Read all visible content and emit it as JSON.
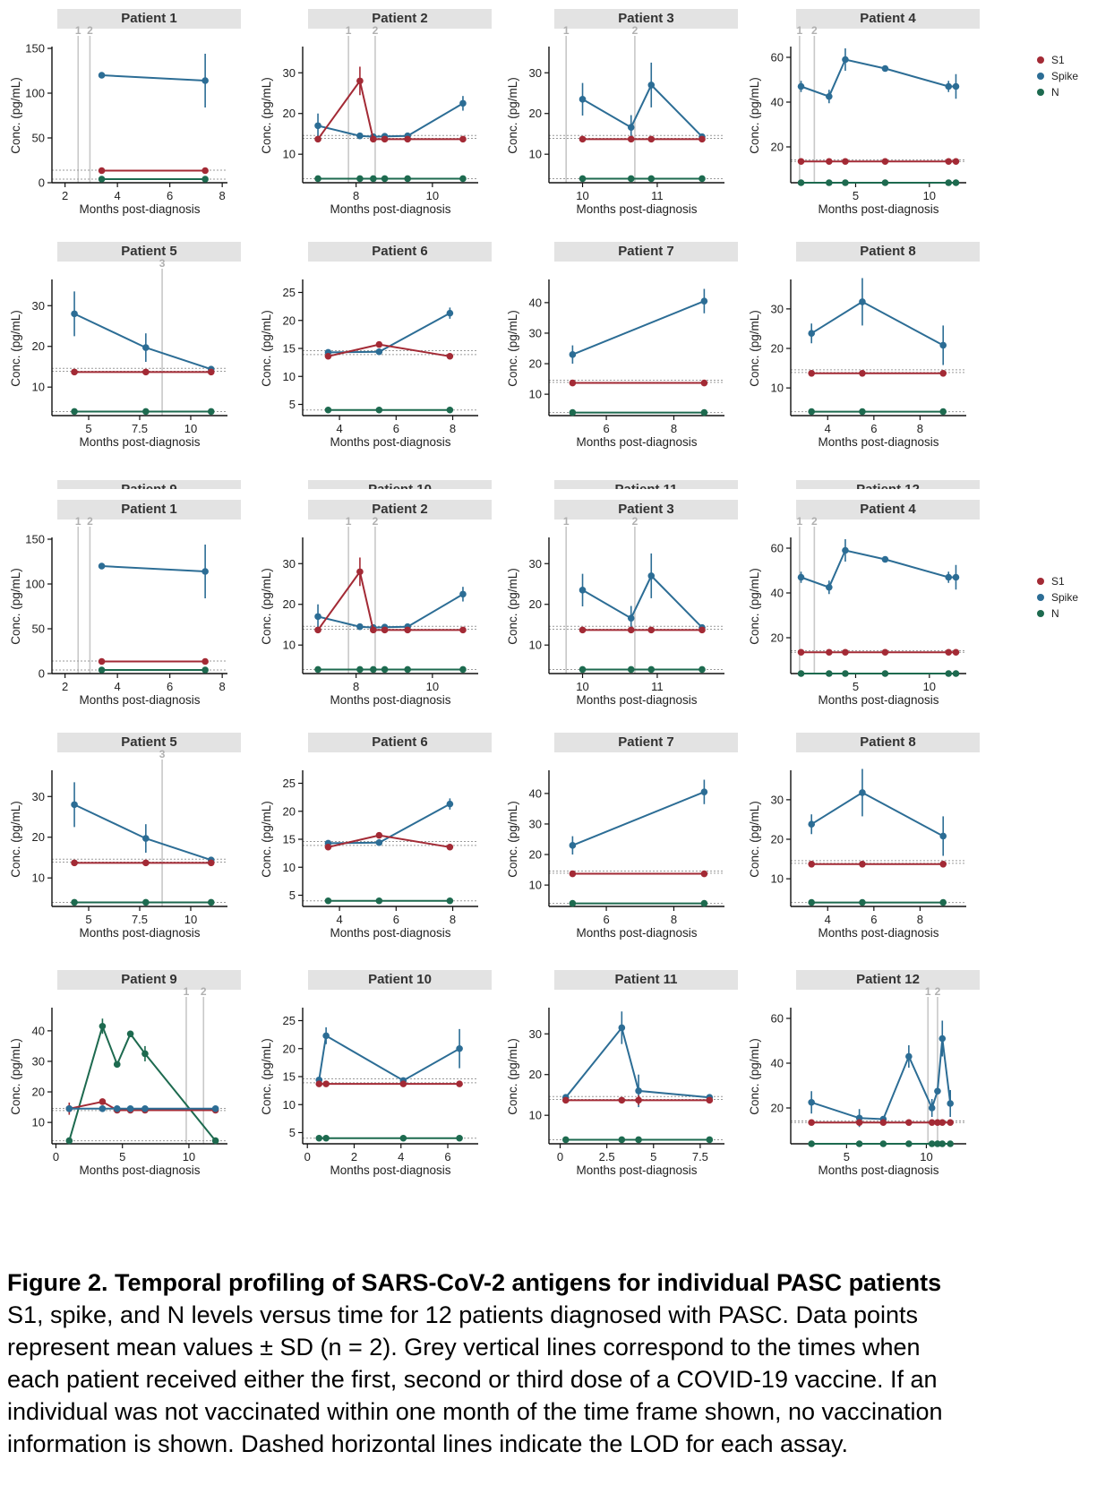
{
  "figure": {
    "caption_title": "Figure 2. Temporal profiling of SARS-CoV-2 antigens for individual PASC patients",
    "caption_lines": [
      "S1, spike, and N levels versus time for 12 patients diagnosed with PASC. Data points",
      "represent mean values ± SD (n = 2). Grey vertical lines correspond to the times when",
      "each patient received either the first, second or third dose of a COVID-19 vaccine. If an",
      "individual was not vaccinated within one month of the time frame shown, no vaccination",
      "information is shown. Dashed horizontal lines indicate the LOD for each assay."
    ]
  },
  "legend": {
    "items": [
      {
        "label": "S1",
        "color": "#a32a35"
      },
      {
        "label": "Spike",
        "color": "#2c6d95"
      },
      {
        "label": "N",
        "color": "#1d6a4f"
      }
    ]
  },
  "chart_data": [
    {
      "type": "line",
      "title": "Patient 1",
      "xlabel": "Months post-diagnosis",
      "ylabel": "Conc. (pg/mL)",
      "xlim": [
        1.5,
        8.2
      ],
      "ylim": [
        0,
        150
      ],
      "xticks": [
        2,
        4,
        6,
        8
      ],
      "yticks": [
        0,
        50,
        100,
        150
      ],
      "vaccine_doses": [
        {
          "label": "1",
          "x": 2.5
        },
        {
          "label": "2",
          "x": 2.95
        }
      ],
      "lod": [
        4,
        14
      ],
      "series": [
        {
          "name": "Spike",
          "x": [
            3.4,
            7.35
          ],
          "y": [
            120,
            114
          ],
          "sd": [
            0,
            30
          ]
        },
        {
          "name": "S1",
          "x": [
            3.4,
            7.35
          ],
          "y": [
            13.5,
            13.5
          ],
          "sd": [
            0,
            0
          ]
        },
        {
          "name": "N",
          "x": [
            3.4,
            7.35
          ],
          "y": [
            4,
            4
          ],
          "sd": [
            0,
            0
          ]
        }
      ]
    },
    {
      "type": "line",
      "title": "Patient 2",
      "xlabel": "Months post-diagnosis",
      "ylabel": "Conc. (pg/mL)",
      "xlim": [
        6.6,
        11.2
      ],
      "ylim": [
        3,
        36
      ],
      "xticks": [
        8,
        10
      ],
      "yticks": [
        10,
        20,
        30
      ],
      "vaccine_doses": [
        {
          "label": "1",
          "x": 7.8
        },
        {
          "label": "2",
          "x": 8.5
        }
      ],
      "lod": [
        4,
        13.9,
        14.6
      ],
      "series": [
        {
          "name": "Spike",
          "x": [
            7.0,
            8.1,
            8.45,
            8.75,
            9.35,
            10.8
          ],
          "y": [
            17,
            14.5,
            14.3,
            14.4,
            14.5,
            22.5
          ],
          "sd": [
            3,
            0,
            0,
            0,
            0,
            1.8
          ]
        },
        {
          "name": "S1",
          "x": [
            7.0,
            8.1,
            8.45,
            8.75,
            9.35,
            10.8
          ],
          "y": [
            13.7,
            28,
            13.7,
            13.7,
            13.7,
            13.7
          ],
          "sd": [
            0,
            3.5,
            0,
            0,
            0,
            0
          ]
        },
        {
          "name": "N",
          "x": [
            7.0,
            8.1,
            8.45,
            8.75,
            9.35,
            10.8
          ],
          "y": [
            4,
            4,
            4,
            4,
            4,
            4
          ],
          "sd": [
            0,
            0,
            0,
            0,
            0,
            0
          ]
        }
      ]
    },
    {
      "type": "line",
      "title": "Patient 3",
      "xlabel": "Months post-diagnosis",
      "ylabel": "Conc. (pg/mL)",
      "xlim": [
        9.55,
        11.9
      ],
      "ylim": [
        3,
        36
      ],
      "xticks": [
        10,
        11
      ],
      "yticks": [
        10,
        20,
        30
      ],
      "vaccine_doses": [
        {
          "label": "1",
          "x": 9.78
        },
        {
          "label": "2",
          "x": 10.7
        }
      ],
      "lod": [
        4,
        13.9,
        14.6
      ],
      "series": [
        {
          "name": "Spike",
          "x": [
            10.0,
            10.65,
            10.92,
            11.6
          ],
          "y": [
            23.5,
            16.6,
            27,
            14.3
          ],
          "sd": [
            4,
            3,
            5.5,
            0
          ]
        },
        {
          "name": "S1",
          "x": [
            10.0,
            10.65,
            10.92,
            11.6
          ],
          "y": [
            13.7,
            13.7,
            13.7,
            13.7
          ],
          "sd": [
            0,
            0,
            0,
            0
          ]
        },
        {
          "name": "N",
          "x": [
            10.0,
            10.65,
            10.92,
            11.6
          ],
          "y": [
            4,
            4,
            4,
            4
          ],
          "sd": [
            0,
            0,
            0,
            0
          ]
        }
      ]
    },
    {
      "type": "line",
      "title": "Patient 4",
      "xlabel": "Months post-diagnosis",
      "ylabel": "Conc. (pg/mL)",
      "xlim": [
        0.6,
        12.5
      ],
      "ylim": [
        4,
        64
      ],
      "xticks": [
        5,
        10
      ],
      "yticks": [
        20,
        40,
        60
      ],
      "vaccine_doses": [
        {
          "label": "1",
          "x": 1.2
        },
        {
          "label": "2",
          "x": 2.2
        }
      ],
      "lod": [
        4,
        13.5,
        14.2
      ],
      "series": [
        {
          "name": "Spike",
          "x": [
            1.3,
            3.2,
            4.3,
            7.0,
            11.3,
            11.8
          ],
          "y": [
            47,
            42.5,
            59,
            55,
            47,
            47
          ],
          "sd": [
            2.5,
            3,
            5,
            0,
            2.5,
            5.5
          ]
        },
        {
          "name": "S1",
          "x": [
            1.3,
            3.2,
            4.3,
            7.0,
            11.3,
            11.8
          ],
          "y": [
            13.5,
            13.5,
            13.5,
            13.5,
            13.5,
            13.5
          ],
          "sd": [
            0,
            0,
            0,
            0,
            0,
            0
          ]
        },
        {
          "name": "N",
          "x": [
            1.3,
            3.2,
            4.3,
            7.0,
            11.3,
            11.8
          ],
          "y": [
            4,
            4,
            4,
            4,
            4,
            4
          ],
          "sd": [
            0,
            0,
            0,
            0,
            0,
            0
          ]
        }
      ]
    },
    {
      "type": "line",
      "title": "Patient 5",
      "xlabel": "Months post-diagnosis",
      "ylabel": "Conc. (pg/mL)",
      "xlim": [
        3.2,
        11.8
      ],
      "ylim": [
        3,
        36
      ],
      "xticks": [
        5,
        7.5,
        10
      ],
      "xtick_labels": [
        "5",
        "7.5",
        "10"
      ],
      "yticks": [
        10,
        20,
        30
      ],
      "vaccine_doses": [
        {
          "label": "3",
          "x": 8.6
        }
      ],
      "lod": [
        4,
        13.9,
        14.6
      ],
      "series": [
        {
          "name": "Spike",
          "x": [
            4.3,
            7.8,
            11.0
          ],
          "y": [
            28,
            19.7,
            14.4
          ],
          "sd": [
            5.5,
            3.5,
            0
          ]
        },
        {
          "name": "S1",
          "x": [
            4.3,
            7.8,
            11.0
          ],
          "y": [
            13.7,
            13.7,
            13.7
          ],
          "sd": [
            0,
            0,
            0
          ]
        },
        {
          "name": "N",
          "x": [
            4.3,
            7.8,
            11.0
          ],
          "y": [
            4,
            4,
            4
          ],
          "sd": [
            0,
            0,
            0
          ]
        }
      ]
    },
    {
      "type": "line",
      "title": "Patient 6",
      "xlabel": "Months post-diagnosis",
      "ylabel": "Conc. (pg/mL)",
      "xlim": [
        2.7,
        8.9
      ],
      "ylim": [
        3,
        27
      ],
      "xticks": [
        4,
        6,
        8
      ],
      "yticks": [
        5,
        10,
        15,
        20,
        25
      ],
      "vaccine_doses": [],
      "lod": [
        4,
        13.9,
        14.6
      ],
      "series": [
        {
          "name": "Spike",
          "x": [
            3.6,
            5.4,
            7.9
          ],
          "y": [
            14.3,
            14.4,
            21.3
          ],
          "sd": [
            0,
            0,
            1
          ]
        },
        {
          "name": "S1",
          "x": [
            3.6,
            5.4,
            7.9
          ],
          "y": [
            13.6,
            15.7,
            13.6
          ],
          "sd": [
            0,
            0,
            0
          ]
        },
        {
          "name": "N",
          "x": [
            3.6,
            5.4,
            7.9
          ],
          "y": [
            4,
            4,
            4
          ],
          "sd": [
            0,
            0,
            0
          ]
        }
      ]
    },
    {
      "type": "line",
      "title": "Patient 7",
      "xlabel": "Months post-diagnosis",
      "ylabel": "Conc. (pg/mL)",
      "xlim": [
        4.3,
        9.5
      ],
      "ylim": [
        3,
        47
      ],
      "xticks": [
        6,
        8
      ],
      "yticks": [
        10,
        20,
        30,
        40
      ],
      "vaccine_doses": [],
      "lod": [
        4,
        13.9,
        14.6
      ],
      "series": [
        {
          "name": "Spike",
          "x": [
            5.0,
            8.9
          ],
          "y": [
            23,
            40.5
          ],
          "sd": [
            3,
            4
          ]
        },
        {
          "name": "S1",
          "x": [
            5.0,
            8.9
          ],
          "y": [
            13.7,
            13.7
          ],
          "sd": [
            0,
            0
          ]
        },
        {
          "name": "N",
          "x": [
            5.0,
            8.9
          ],
          "y": [
            4,
            4
          ],
          "sd": [
            0,
            0
          ]
        }
      ]
    },
    {
      "type": "line",
      "title": "Patient 8",
      "xlabel": "Months post-diagnosis",
      "ylabel": "Conc. (pg/mL)",
      "xlim": [
        2.4,
        10.0
      ],
      "ylim": [
        3,
        37
      ],
      "xticks": [
        4,
        6,
        8
      ],
      "yticks": [
        10,
        20,
        30
      ],
      "vaccine_doses": [],
      "lod": [
        4,
        13.9,
        14.6
      ],
      "series": [
        {
          "name": "Spike",
          "x": [
            3.3,
            5.5,
            9.0
          ],
          "y": [
            23.8,
            31.8,
            20.8
          ],
          "sd": [
            2.5,
            6,
            5
          ]
        },
        {
          "name": "S1",
          "x": [
            3.3,
            5.5,
            9.0
          ],
          "y": [
            13.7,
            13.7,
            13.7
          ],
          "sd": [
            0,
            0,
            0
          ]
        },
        {
          "name": "N",
          "x": [
            3.3,
            5.5,
            9.0
          ],
          "y": [
            4,
            4,
            4
          ],
          "sd": [
            0,
            0,
            0
          ]
        }
      ]
    },
    {
      "type": "line",
      "title": "Patient 9",
      "xlabel": "Months post-diagnosis",
      "ylabel": "Conc. (pg/mL)",
      "xlim": [
        -0.3,
        12.9
      ],
      "ylim": [
        3,
        47
      ],
      "xticks": [
        0,
        5,
        10
      ],
      "yticks": [
        10,
        20,
        30,
        40
      ],
      "vaccine_doses": [
        {
          "label": "1",
          "x": 9.8
        },
        {
          "label": "2",
          "x": 11.1
        }
      ],
      "lod": [
        4,
        13.9,
        14.6
      ],
      "series": [
        {
          "name": "N",
          "x": [
            1.0,
            3.5,
            4.6,
            5.6,
            6.7,
            12.0
          ],
          "y": [
            4,
            41.5,
            29,
            39,
            32.5,
            4
          ],
          "sd": [
            0,
            2.5,
            0,
            1,
            2.5,
            0
          ]
        },
        {
          "name": "S1",
          "x": [
            1.0,
            3.5,
            4.6,
            5.6,
            6.7,
            12.0
          ],
          "y": [
            14.5,
            16.8,
            14,
            14,
            14,
            14
          ],
          "sd": [
            2,
            0,
            0,
            0,
            0,
            0
          ]
        },
        {
          "name": "Spike",
          "x": [
            1.0,
            3.5,
            4.6,
            5.6,
            6.7,
            12.0
          ],
          "y": [
            14.5,
            14.5,
            14.5,
            14.5,
            14.5,
            14.5
          ],
          "sd": [
            0,
            0,
            0,
            0,
            0,
            0
          ]
        }
      ]
    },
    {
      "type": "line",
      "title": "Patient 10",
      "xlabel": "Months post-diagnosis",
      "ylabel": "Conc. (pg/mL)",
      "xlim": [
        -0.2,
        7.3
      ],
      "ylim": [
        3,
        27
      ],
      "xticks": [
        0,
        2,
        4,
        6
      ],
      "yticks": [
        5,
        10,
        15,
        20,
        25
      ],
      "vaccine_doses": [],
      "lod": [
        4,
        13.9,
        14.6
      ],
      "series": [
        {
          "name": "Spike",
          "x": [
            0.5,
            0.8,
            4.1,
            6.5
          ],
          "y": [
            14.4,
            22.3,
            14.3,
            20
          ],
          "sd": [
            0,
            1.5,
            0,
            3.5
          ]
        },
        {
          "name": "S1",
          "x": [
            0.5,
            0.8,
            4.1,
            6.5
          ],
          "y": [
            13.7,
            13.7,
            13.7,
            13.7
          ],
          "sd": [
            0,
            0,
            0,
            0
          ]
        },
        {
          "name": "N",
          "x": [
            0.5,
            0.8,
            4.1,
            6.5
          ],
          "y": [
            4,
            4,
            4,
            4
          ],
          "sd": [
            0,
            0,
            0,
            0
          ]
        }
      ]
    },
    {
      "type": "line",
      "title": "Patient 11",
      "xlabel": "Months post-diagnosis",
      "ylabel": "Conc. (pg/mL)",
      "xlim": [
        -0.6,
        8.8
      ],
      "ylim": [
        3,
        36
      ],
      "xticks": [
        0,
        2.5,
        5,
        7.5
      ],
      "xtick_labels": [
        "0",
        "2.5",
        "5",
        "7.5"
      ],
      "yticks": [
        10,
        20,
        30
      ],
      "vaccine_doses": [],
      "lod": [
        4,
        13.9,
        14.6
      ],
      "series": [
        {
          "name": "Spike",
          "x": [
            0.3,
            3.3,
            4.2,
            8.0
          ],
          "y": [
            14.4,
            31.5,
            16,
            14.4
          ],
          "sd": [
            0,
            4,
            4,
            0
          ]
        },
        {
          "name": "S1",
          "x": [
            0.3,
            3.3,
            4.2,
            8.0
          ],
          "y": [
            13.7,
            13.7,
            13.7,
            13.7
          ],
          "sd": [
            0,
            0,
            1.2,
            0
          ]
        },
        {
          "name": "N",
          "x": [
            0.3,
            3.3,
            4.2,
            8.0
          ],
          "y": [
            4,
            4,
            4,
            4
          ],
          "sd": [
            0,
            0,
            0,
            0
          ]
        }
      ]
    },
    {
      "type": "line",
      "title": "Patient 12",
      "xlabel": "Months post-diagnosis",
      "ylabel": "Conc. (pg/mL)",
      "xlim": [
        1.5,
        12.5
      ],
      "ylim": [
        4,
        64
      ],
      "xticks": [
        5,
        10
      ],
      "yticks": [
        20,
        40,
        60
      ],
      "vaccine_doses": [
        {
          "label": "1",
          "x": 10.1
        },
        {
          "label": "2",
          "x": 10.7
        }
      ],
      "lod": [
        4,
        13.5,
        14.2
      ],
      "series": [
        {
          "name": "Spike",
          "x": [
            2.8,
            5.8,
            7.3,
            8.9,
            10.35,
            10.7,
            11.0,
            11.5
          ],
          "y": [
            22.5,
            15.5,
            15,
            43,
            20,
            27.5,
            51,
            22
          ],
          "sd": [
            5,
            4,
            0,
            5,
            4,
            0,
            8,
            6
          ]
        },
        {
          "name": "S1",
          "x": [
            2.8,
            5.8,
            7.3,
            8.9,
            10.35,
            10.7,
            11.0,
            11.5
          ],
          "y": [
            13.5,
            13.5,
            13.5,
            13.5,
            13.5,
            13.5,
            13.5,
            13.5
          ],
          "sd": [
            0,
            0,
            0,
            0,
            0,
            0,
            0,
            0
          ]
        },
        {
          "name": "N",
          "x": [
            2.8,
            5.8,
            7.3,
            8.9,
            10.35,
            10.7,
            11.0,
            11.5
          ],
          "y": [
            4,
            4,
            4,
            4,
            4,
            4,
            4,
            4
          ],
          "sd": [
            0,
            0,
            0,
            0,
            0,
            0,
            0,
            0
          ]
        }
      ]
    }
  ]
}
